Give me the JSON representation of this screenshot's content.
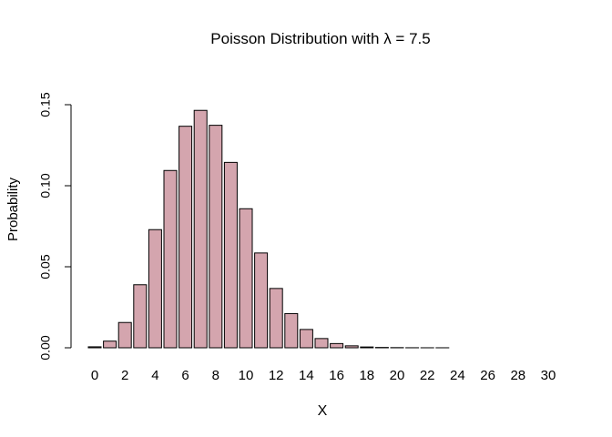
{
  "chart_data": {
    "type": "bar",
    "title": "Poisson Distribution with λ = 7.5",
    "xlabel": "X",
    "ylabel": "Probability",
    "categories": [
      0,
      1,
      2,
      3,
      4,
      5,
      6,
      7,
      8,
      9,
      10,
      11,
      12,
      13,
      14,
      15,
      16,
      17,
      18,
      19,
      20,
      21,
      22,
      23,
      24,
      25,
      26,
      27,
      28,
      29,
      30
    ],
    "values": [
      0.0006,
      0.0041,
      0.0156,
      0.0389,
      0.0729,
      0.1094,
      0.1367,
      0.1465,
      0.1373,
      0.1144,
      0.0858,
      0.0585,
      0.0366,
      0.0211,
      0.0113,
      0.0057,
      0.0026,
      0.0012,
      0.0005,
      0.0002,
      0.0001,
      3e-05,
      1e-05,
      4e-06,
      1e-06,
      0,
      0,
      0,
      0,
      0,
      0
    ],
    "x_tick_labels": [
      "0",
      "2",
      "4",
      "6",
      "8",
      "10",
      "12",
      "14",
      "16",
      "18",
      "20",
      "22",
      "24",
      "26",
      "28",
      "30"
    ],
    "y_ticks": [
      0.0,
      0.05,
      0.1,
      0.15
    ],
    "y_tick_labels": [
      "0.00",
      "0.05",
      "0.10",
      "0.15"
    ],
    "ylim": [
      0,
      0.15
    ],
    "grid": false,
    "legend": "none",
    "colors": {
      "bar_fill": "#D4A5AE",
      "bar_stroke": "#000000",
      "axis": "#000000"
    }
  }
}
